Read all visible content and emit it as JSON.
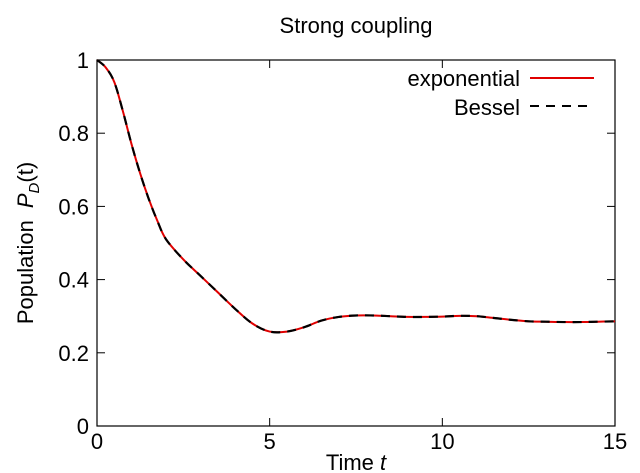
{
  "chart_data": {
    "type": "line",
    "title": "Strong coupling",
    "xlabel": "Time",
    "xlabel_var": "t",
    "ylabel": "Population",
    "ylabel_var": "P",
    "ylabel_sub": "D",
    "ylabel_arg": "(t)",
    "xlim": [
      0,
      15
    ],
    "ylim": [
      0,
      1
    ],
    "xticks": [
      0,
      5,
      10,
      15
    ],
    "yticks": [
      0,
      0.2,
      0.4,
      0.6,
      0.8,
      1
    ],
    "ytick_labels": [
      "0",
      "0.2",
      "0.4",
      "0.6",
      "0.8",
      "1"
    ],
    "grid": false,
    "legend_position": "top-right",
    "series": [
      {
        "name": "exponential",
        "style": "solid",
        "color": "#e00000",
        "x": [
          0,
          0.25,
          0.5,
          0.75,
          1,
          1.25,
          1.5,
          1.75,
          2,
          2.5,
          3,
          3.5,
          4,
          4.5,
          5,
          5.5,
          6,
          6.5,
          7,
          7.5,
          8,
          8.5,
          9,
          9.5,
          10,
          10.5,
          11,
          11.5,
          12,
          12.5,
          13,
          13.5,
          14,
          14.5,
          15
        ],
        "y": [
          1.0,
          0.98,
          0.94,
          0.86,
          0.77,
          0.69,
          0.62,
          0.56,
          0.51,
          0.455,
          0.41,
          0.365,
          0.32,
          0.28,
          0.258,
          0.258,
          0.27,
          0.288,
          0.298,
          0.302,
          0.302,
          0.3,
          0.298,
          0.298,
          0.299,
          0.301,
          0.3,
          0.295,
          0.29,
          0.286,
          0.285,
          0.284,
          0.284,
          0.285,
          0.286
        ]
      },
      {
        "name": "Bessel",
        "style": "dashed",
        "color": "#000000",
        "x": [
          0,
          0.25,
          0.5,
          0.75,
          1,
          1.25,
          1.5,
          1.75,
          2,
          2.5,
          3,
          3.5,
          4,
          4.5,
          5,
          5.5,
          6,
          6.5,
          7,
          7.5,
          8,
          8.5,
          9,
          9.5,
          10,
          10.5,
          11,
          11.5,
          12,
          12.5,
          13,
          13.5,
          14,
          14.5,
          15
        ],
        "y": [
          1.0,
          0.98,
          0.94,
          0.86,
          0.77,
          0.69,
          0.62,
          0.56,
          0.51,
          0.455,
          0.41,
          0.365,
          0.32,
          0.28,
          0.258,
          0.258,
          0.27,
          0.288,
          0.298,
          0.302,
          0.302,
          0.3,
          0.298,
          0.298,
          0.299,
          0.301,
          0.3,
          0.295,
          0.29,
          0.286,
          0.285,
          0.284,
          0.284,
          0.285,
          0.286
        ]
      }
    ]
  }
}
